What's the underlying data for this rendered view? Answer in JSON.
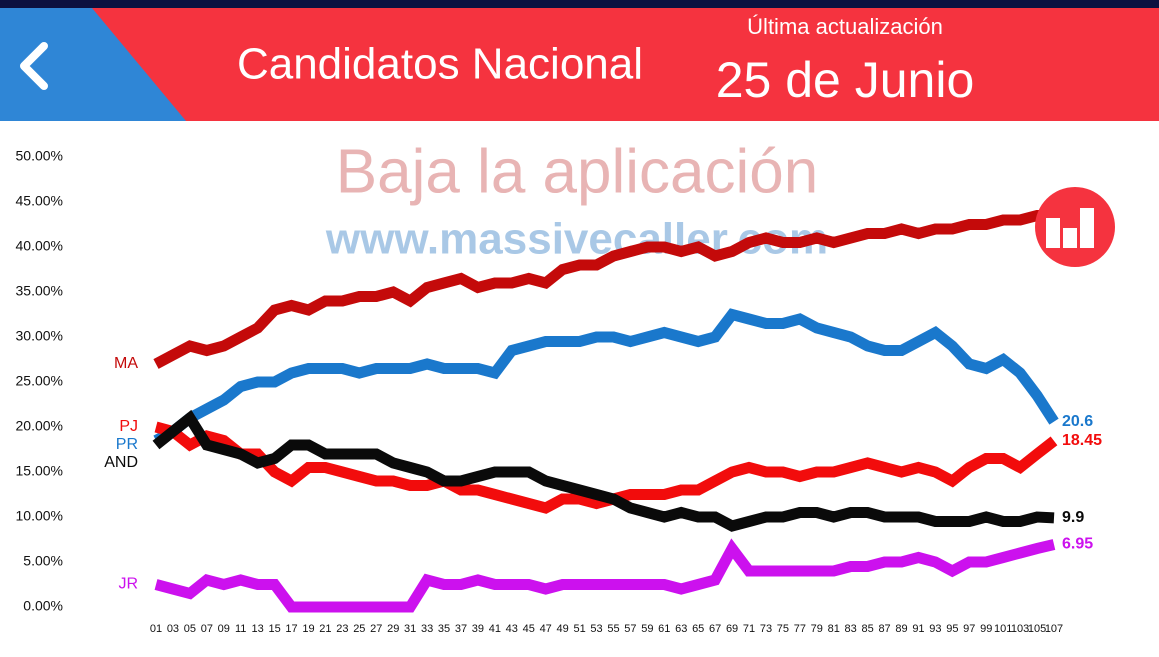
{
  "header": {
    "title": "Candidatos Nacional",
    "update_label": "Última actualización",
    "update_date": "25 de Junio"
  },
  "watermark": {
    "line1": "Baja la aplicación",
    "line2": "www.massivecaller.com"
  },
  "chart_data": {
    "type": "line",
    "categories": [
      "01",
      "03",
      "05",
      "07",
      "09",
      "11",
      "13",
      "15",
      "17",
      "19",
      "21",
      "23",
      "25",
      "27",
      "29",
      "31",
      "33",
      "35",
      "37",
      "39",
      "41",
      "43",
      "45",
      "47",
      "49",
      "51",
      "53",
      "55",
      "57",
      "59",
      "61",
      "63",
      "65",
      "67",
      "69",
      "71",
      "73",
      "75",
      "77",
      "79",
      "81",
      "83",
      "85",
      "87",
      "89",
      "91",
      "93",
      "95",
      "97",
      "99",
      "101",
      "103",
      "105",
      "107"
    ],
    "ylim": [
      0,
      50
    ],
    "yticks": [
      {
        "value": 0,
        "label": "0.00%"
      },
      {
        "value": 5,
        "label": "5.00%"
      },
      {
        "value": 10,
        "label": "10.00%"
      },
      {
        "value": 15,
        "label": "15.00%"
      },
      {
        "value": 20,
        "label": "20.00%"
      },
      {
        "value": 25,
        "label": "25.00%"
      },
      {
        "value": 30,
        "label": "30.00%"
      },
      {
        "value": 35,
        "label": "35.00%"
      },
      {
        "value": 40,
        "label": "40.00%"
      },
      {
        "value": 45,
        "label": "45.00%"
      },
      {
        "value": 50,
        "label": "50.00%"
      }
    ],
    "grid": false,
    "series": [
      {
        "name": "MA",
        "color": "#c40a0a",
        "show_last_value": false,
        "values": [
          27,
          28,
          29,
          28.5,
          29,
          30,
          31,
          33,
          33.5,
          33,
          34,
          34,
          34.5,
          34.5,
          35,
          34,
          35.5,
          36,
          36.5,
          35.5,
          36,
          36,
          36.5,
          36,
          37.5,
          38,
          38,
          39,
          39.5,
          40,
          40,
          39.5,
          40,
          39,
          39.5,
          40.5,
          41,
          40.5,
          40.5,
          41,
          40.5,
          41,
          41.5,
          41.5,
          42,
          41.5,
          42,
          42,
          42.5,
          42.5,
          43,
          43,
          43.5,
          43.5
        ]
      },
      {
        "name": "PR",
        "color": "#1a78cc",
        "show_last_value": true,
        "values": [
          18.5,
          19.5,
          21,
          22,
          23,
          24.5,
          25,
          25,
          26,
          26.5,
          26.5,
          26.5,
          26,
          26.5,
          26.5,
          26.5,
          27,
          26.5,
          26.5,
          26.5,
          26,
          28.5,
          29,
          29.5,
          29.5,
          29.5,
          30,
          30,
          29.5,
          30,
          30.5,
          30,
          29.5,
          30,
          32.5,
          32,
          31.5,
          31.5,
          32,
          31,
          30.5,
          30,
          29,
          28.5,
          28.5,
          29.5,
          30.5,
          29,
          27,
          26.5,
          27.5,
          26,
          23.5,
          20.6
        ]
      },
      {
        "name": "PJ",
        "color": "#f20c0c",
        "show_last_value": true,
        "values": [
          20,
          19.5,
          18,
          19,
          18.5,
          17,
          17,
          15,
          14,
          15.5,
          15.5,
          15,
          14.5,
          14,
          14,
          13.5,
          13.5,
          14,
          13,
          13,
          12.5,
          12,
          11.5,
          11,
          12,
          12,
          11.5,
          12,
          12.5,
          12.5,
          12.5,
          13,
          13,
          14,
          15,
          15.5,
          15,
          15,
          14.5,
          15,
          15,
          15.5,
          16,
          15.5,
          15,
          15.5,
          15,
          14,
          15.5,
          16.5,
          16.5,
          15.5,
          17,
          18.45
        ]
      },
      {
        "name": "AND",
        "color": "#0a0a0a",
        "show_last_value": true,
        "values": [
          18,
          19.5,
          21,
          18,
          17.5,
          17,
          16,
          16.5,
          18,
          18,
          17,
          17,
          17,
          17,
          16,
          15.5,
          15,
          14,
          14,
          14.5,
          15,
          15,
          15,
          14,
          13.5,
          13,
          12.5,
          12,
          11,
          10.5,
          10,
          10.5,
          10,
          10,
          9,
          9.5,
          10,
          10,
          10.5,
          10.5,
          10,
          10.5,
          10.5,
          10,
          10,
          10,
          9.5,
          9.5,
          9.5,
          10,
          9.5,
          9.5,
          10,
          9.9
        ]
      },
      {
        "name": "JR",
        "color": "#cc11ee",
        "show_last_value": true,
        "values": [
          2.5,
          2,
          1.5,
          3,
          2.5,
          3,
          2.5,
          2.5,
          0,
          0,
          0,
          0,
          0,
          0,
          0,
          0,
          3,
          2.5,
          2.5,
          3,
          2.5,
          2.5,
          2.5,
          2,
          2.5,
          2.5,
          2.5,
          2.5,
          2.5,
          2.5,
          2.5,
          2,
          2.5,
          3,
          6.5,
          4,
          4,
          4,
          4,
          4,
          4,
          4.5,
          4.5,
          5,
          5,
          5.5,
          5,
          4,
          5,
          5,
          5.5,
          6,
          6.5,
          6.95
        ]
      }
    ]
  }
}
